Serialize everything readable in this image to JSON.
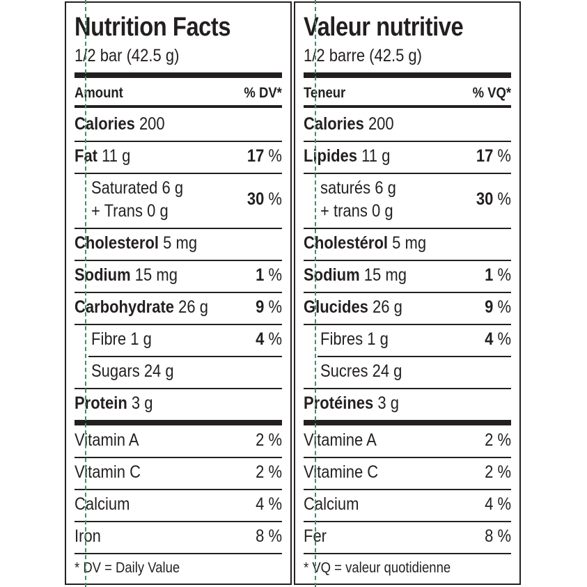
{
  "english": {
    "title": "Nutrition Facts",
    "serving": "1/2 bar (42.5 g)",
    "amount_header": "Amount",
    "dv_header": "% DV*",
    "calories_label": "Calories",
    "calories_value": "200",
    "fat_label": "Fat",
    "fat_amount": "11 g",
    "fat_dv": "17",
    "saturated_line": "Saturated 6 g",
    "trans_line": "+ Trans 0 g",
    "sat_trans_dv": "30",
    "cholesterol_label": "Cholesterol",
    "cholesterol_amount": "5 mg",
    "sodium_label": "Sodium",
    "sodium_amount": "15 mg",
    "sodium_dv": "1",
    "carb_label": "Carbohydrate",
    "carb_amount": "26 g",
    "carb_dv": "9",
    "fibre_line": "Fibre 1 g",
    "fibre_dv": "4",
    "sugars_line": "Sugars 24 g",
    "protein_label": "Protein",
    "protein_amount": "3 g",
    "vitamin_a_label": "Vitamin A",
    "vitamin_a_value": "2 %",
    "vitamin_c_label": "Vitamin C",
    "vitamin_c_value": "2 %",
    "calcium_label": "Calcium",
    "calcium_value": "4 %",
    "iron_label": "Iron",
    "iron_value": "8 %",
    "footnote": "* DV = Daily Value"
  },
  "french": {
    "title": "Valeur nutritive",
    "serving": "1/2 barre (42.5 g)",
    "amount_header": "Teneur",
    "dv_header": "% VQ*",
    "calories_label": "Calories",
    "calories_value": "200",
    "fat_label": "Lipides",
    "fat_amount": "11 g",
    "fat_dv": "17",
    "saturated_line": "saturés 6 g",
    "trans_line": "+ trans 0 g",
    "sat_trans_dv": "30",
    "cholesterol_label": "Cholestérol",
    "cholesterol_amount": "5 mg",
    "sodium_label": "Sodium",
    "sodium_amount": "15 mg",
    "sodium_dv": "1",
    "carb_label": "Glucides",
    "carb_amount": "26 g",
    "carb_dv": "9",
    "fibre_line": "Fibres 1 g",
    "fibre_dv": "4",
    "sugars_line": "Sucres 24 g",
    "protein_label": "Protéines",
    "protein_amount": "3 g",
    "vitamin_a_label": "Vitamine A",
    "vitamin_a_value": "2 %",
    "vitamin_c_label": "Vitamine C",
    "vitamin_c_value": "2 %",
    "calcium_label": "Calcium",
    "calcium_value": "4 %",
    "iron_label": "Fer",
    "iron_value": "8 %",
    "footnote": "* VQ = valeur quotidienne"
  },
  "pct_sign": "%",
  "colors": {
    "ink": "#231f20",
    "guide": "#22a05a"
  }
}
